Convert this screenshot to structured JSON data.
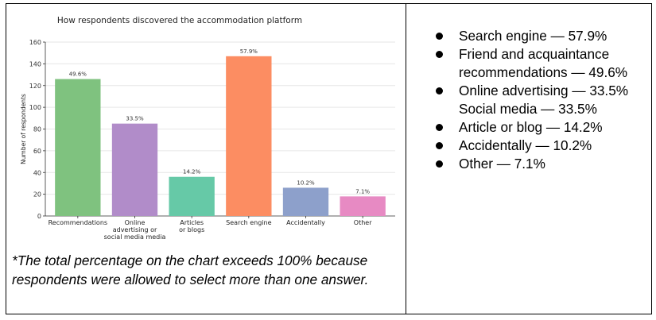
{
  "chart_data": {
    "type": "bar",
    "title": "How respondents discovered the accommodation platform",
    "xlabel": "",
    "ylabel": "Number of respondents",
    "ylim": [
      0,
      160
    ],
    "yticks": [
      0,
      20,
      40,
      60,
      80,
      100,
      120,
      140,
      160
    ],
    "grid": true,
    "categories": [
      [
        "Recommendations"
      ],
      [
        "Online",
        "advertising or",
        "social media media"
      ],
      [
        "Articles",
        "or blogs"
      ],
      [
        "Search engine"
      ],
      [
        "Accidentally"
      ],
      [
        "Other"
      ]
    ],
    "values": [
      126,
      85,
      36,
      147,
      26,
      18
    ],
    "data_labels": [
      "49.6%",
      "33.5%",
      "14.2%",
      "57.9%",
      "10.2%",
      "7.1%"
    ],
    "colors": [
      "#7fc27f",
      "#b18cc9",
      "#66c9a7",
      "#fc8d62",
      "#8da0cb",
      "#e78ac3"
    ]
  },
  "note": "*The total percentage on the chart exceeds 100% because respondents were allowed to select more than one answer.",
  "summary": {
    "items": [
      {
        "bullet": true,
        "text": "Search engine — 57.9%"
      },
      {
        "bullet": true,
        "text": "Friend and acquaintance recommendations — 49.6%"
      },
      {
        "bullet": true,
        "text": "Online advertising — 33.5%"
      },
      {
        "bullet": false,
        "text": "Social media — 33.5%"
      },
      {
        "bullet": true,
        "text": "Article or blog — 14.2%"
      },
      {
        "bullet": true,
        "text": "Accidentally — 10.2%"
      },
      {
        "bullet": true,
        "text": "Other — 7.1%"
      }
    ]
  }
}
